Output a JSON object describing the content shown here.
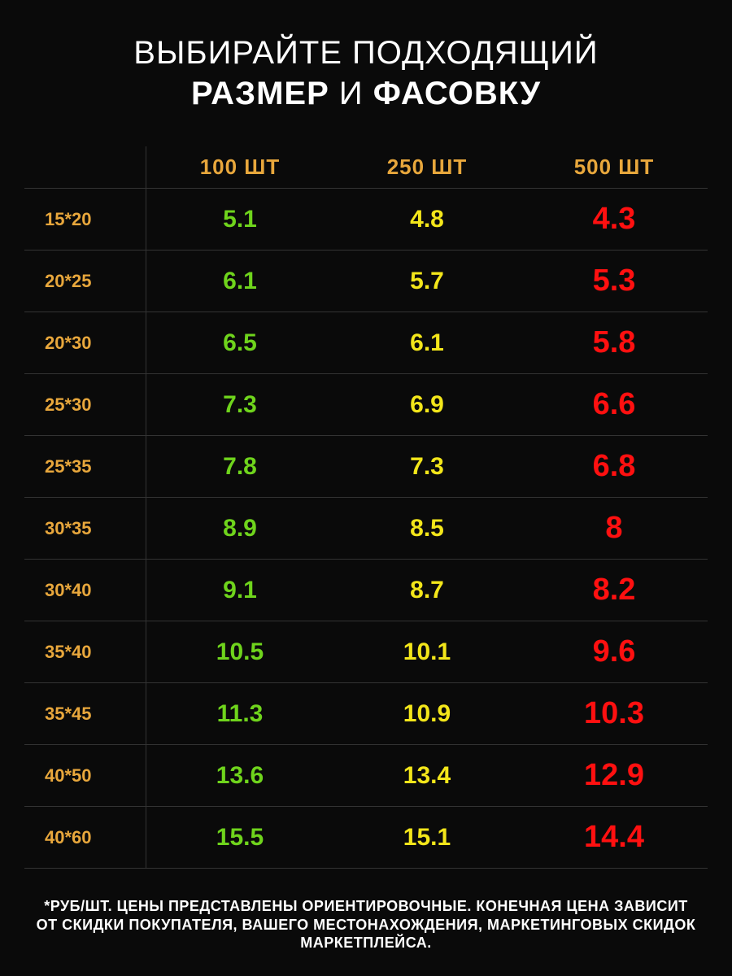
{
  "title": {
    "line1_plain": "ВЫБИРАЙТЕ ПОДХОДЯЩИЙ",
    "line2_bold1": "РАЗМЕР",
    "line2_plain": " И ",
    "line2_bold2": "ФАСОВКУ"
  },
  "table": {
    "type": "table",
    "background_color": "#0a0a0a",
    "grid_color": "#333333",
    "header_color": "#e8a73c",
    "header_fontsize": 26,
    "size_label_color": "#e8a73c",
    "size_label_fontsize": 22,
    "columns": [
      {
        "label": "100 ШТ",
        "value_color": "#6fd41c",
        "value_fontsize": 30
      },
      {
        "label": "250 ШТ",
        "value_color": "#f3e61a",
        "value_fontsize": 30
      },
      {
        "label": "500 ШТ",
        "value_color": "#ff1010",
        "value_fontsize": 38
      }
    ],
    "rows": [
      {
        "size": "15*20",
        "values": [
          "5.1",
          "4.8",
          "4.3"
        ]
      },
      {
        "size": "20*25",
        "values": [
          "6.1",
          "5.7",
          "5.3"
        ]
      },
      {
        "size": "20*30",
        "values": [
          "6.5",
          "6.1",
          "5.8"
        ]
      },
      {
        "size": "25*30",
        "values": [
          "7.3",
          "6.9",
          "6.6"
        ]
      },
      {
        "size": "25*35",
        "values": [
          "7.8",
          "7.3",
          "6.8"
        ]
      },
      {
        "size": "30*35",
        "values": [
          "8.9",
          "8.5",
          "8"
        ]
      },
      {
        "size": "30*40",
        "values": [
          "9.1",
          "8.7",
          "8.2"
        ]
      },
      {
        "size": "35*40",
        "values": [
          "10.5",
          "10.1",
          "9.6"
        ]
      },
      {
        "size": "35*45",
        "values": [
          "11.3",
          "10.9",
          "10.3"
        ]
      },
      {
        "size": "40*50",
        "values": [
          "13.6",
          "13.4",
          "12.9"
        ]
      },
      {
        "size": "40*60",
        "values": [
          "15.5",
          "15.1",
          "14.4"
        ]
      }
    ]
  },
  "footnote": "*РУБ/ШТ. ЦЕНЫ ПРЕДСТАВЛЕНЫ ОРИЕНТИРОВОЧНЫЕ. КОНЕЧНАЯ ЦЕНА ЗАВИСИТ ОТ СКИДКИ ПОКУПАТЕЛЯ, ВАШЕГО МЕСТОНАХОЖДЕНИЯ, МАРКЕТИНГОВЫХ СКИДОК МАРКЕТПЛЕЙСА."
}
